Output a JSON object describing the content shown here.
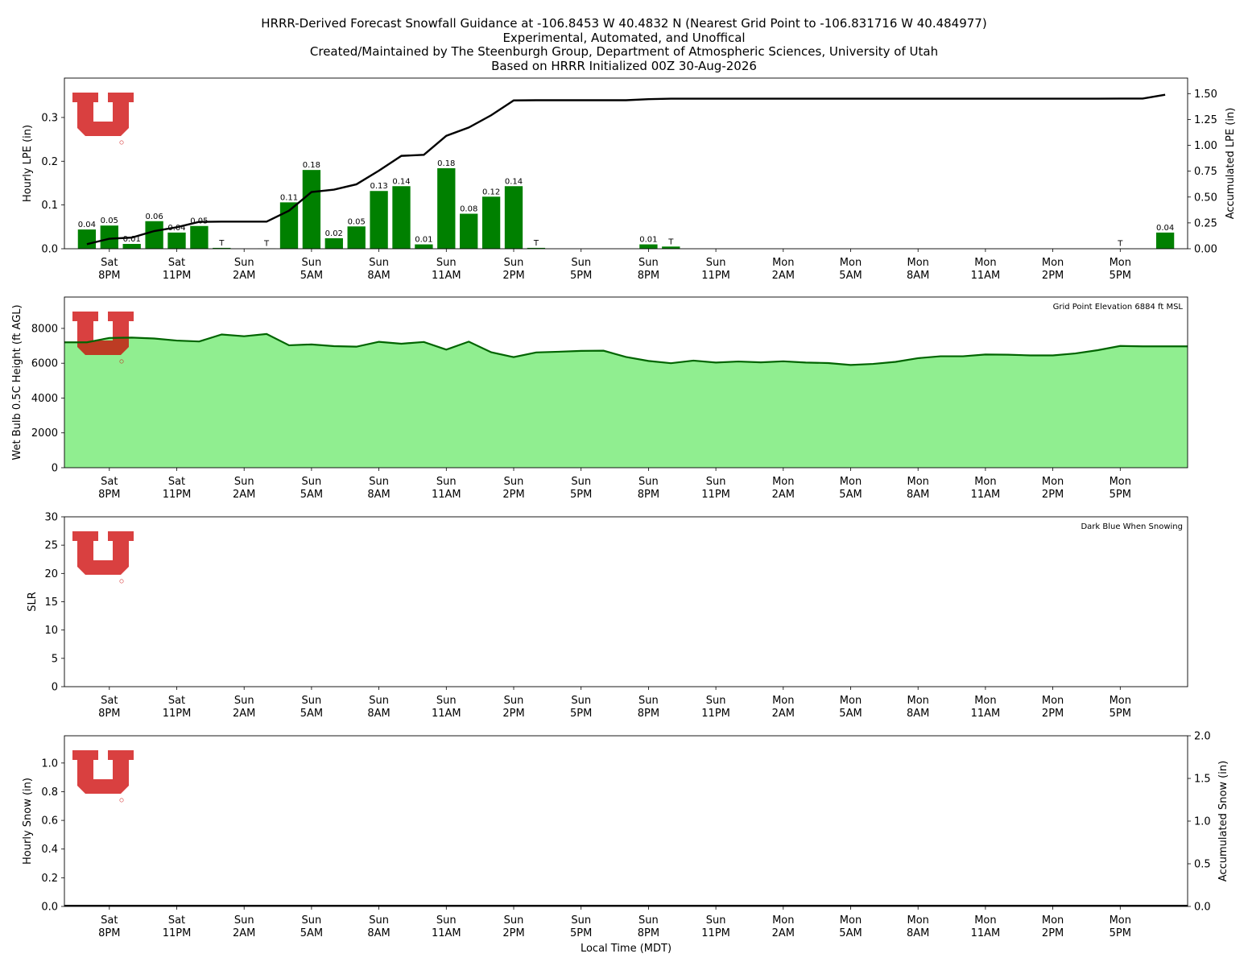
{
  "title_lines": [
    "HRRR-Derived Forecast Snowfall Guidance at -106.8453 W 40.4832 N (Nearest Grid Point to -106.831716 W 40.484977)",
    "Experimental, Automated, and Unoffical",
    "Created/Maintained by The Steenburgh Group, Department of Atmospheric Sciences, University of Utah",
    "Based on HRRR Initialized 00Z 30-Aug-2026"
  ],
  "x_axis": {
    "label": "Local Time (MDT)",
    "tick_labels": [
      [
        "Sat",
        "8PM"
      ],
      [
        "Sat",
        "11PM"
      ],
      [
        "Sun",
        "2AM"
      ],
      [
        "Sun",
        "5AM"
      ],
      [
        "Sun",
        "8AM"
      ],
      [
        "Sun",
        "11AM"
      ],
      [
        "Sun",
        "2PM"
      ],
      [
        "Sun",
        "5PM"
      ],
      [
        "Sun",
        "8PM"
      ],
      [
        "Sun",
        "11PM"
      ],
      [
        "Mon",
        "2AM"
      ],
      [
        "Mon",
        "5AM"
      ],
      [
        "Mon",
        "8AM"
      ],
      [
        "Mon",
        "11AM"
      ],
      [
        "Mon",
        "2PM"
      ],
      [
        "Mon",
        "5PM"
      ]
    ]
  },
  "colors": {
    "bar": "#008000",
    "line": "#000000",
    "fill": "#90ee90",
    "fill_line": "#006400",
    "logo": "#cc0000"
  },
  "chart_data": [
    {
      "type": "bar",
      "ylabel": "Hourly LPE (in)",
      "y2label": "Accumulated LPE (in)",
      "ylim": [
        0,
        0.39
      ],
      "y2lim": [
        0,
        1.65
      ],
      "y_ticks": [
        "0.0",
        "0.1",
        "0.2",
        "0.3"
      ],
      "y2_ticks": [
        "0.00",
        "0.25",
        "0.50",
        "0.75",
        "1.00",
        "1.25",
        "1.50"
      ],
      "hours": [
        -1,
        0,
        1,
        2,
        3,
        4,
        5,
        6,
        7,
        8,
        9,
        10,
        11,
        12,
        13,
        14,
        15,
        16,
        17,
        18,
        19,
        20,
        21,
        22,
        23,
        24,
        25,
        26,
        27,
        28,
        29,
        30,
        31,
        32,
        33,
        34,
        35,
        36,
        37,
        38,
        39,
        40,
        41,
        42,
        43,
        44,
        45,
        46,
        47
      ],
      "hourly_values": [
        0.044,
        0.053,
        0.011,
        0.063,
        0.037,
        0.052,
        0.002,
        0,
        0.0005,
        0.106,
        0.18,
        0.024,
        0.051,
        0.132,
        0.143,
        0.01,
        0.184,
        0.08,
        0.119,
        0.143,
        0.002,
        0,
        0,
        0,
        0,
        0.01,
        0.005,
        0,
        0,
        0,
        0,
        0,
        0,
        0,
        0,
        0,
        0,
        0,
        0,
        0,
        0,
        0,
        0,
        0,
        0,
        0,
        0.0005,
        0,
        0.037
      ],
      "bar_labels": [
        "0.04",
        "0.05",
        "0.01",
        "0.06",
        "0.04",
        "0.05",
        "T",
        "",
        "T",
        "0.11",
        "0.18",
        "0.02",
        "0.05",
        "0.13",
        "0.14",
        "0.01",
        "0.18",
        "0.08",
        "0.12",
        "0.14",
        "T",
        "",
        "",
        "",
        "",
        "0.01",
        "T",
        "",
        "",
        "",
        "",
        "",
        "",
        "",
        "",
        "",
        "",
        "",
        "",
        "",
        "",
        "",
        "",
        "",
        "",
        "",
        "T",
        "",
        "0.04"
      ],
      "accumulated_values": [
        0.044,
        0.097,
        0.108,
        0.171,
        0.208,
        0.26,
        0.262,
        0.262,
        0.262,
        0.368,
        0.548,
        0.572,
        0.623,
        0.755,
        0.898,
        0.908,
        1.092,
        1.172,
        1.291,
        1.434,
        1.436,
        1.436,
        1.436,
        1.436,
        1.436,
        1.446,
        1.451,
        1.451,
        1.451,
        1.451,
        1.451,
        1.451,
        1.451,
        1.451,
        1.451,
        1.451,
        1.451,
        1.451,
        1.451,
        1.451,
        1.451,
        1.451,
        1.451,
        1.451,
        1.451,
        1.451,
        1.452,
        1.452,
        1.489
      ]
    },
    {
      "type": "area",
      "ylabel": "Wet Bulb 0.5C Height (ft AGL)",
      "ylim": [
        0,
        9800
      ],
      "y_ticks": [
        "0",
        "2000",
        "4000",
        "6000",
        "8000"
      ],
      "annotation": "Grid Point Elevation 6884 ft MSL",
      "hours": [
        -1,
        0,
        1,
        2,
        3,
        4,
        5,
        6,
        7,
        8,
        9,
        10,
        11,
        12,
        13,
        14,
        15,
        16,
        17,
        18,
        19,
        20,
        21,
        22,
        23,
        24,
        25,
        26,
        27,
        28,
        29,
        30,
        31,
        32,
        33,
        34,
        35,
        36,
        37,
        38,
        39,
        40,
        41,
        42,
        43,
        44,
        45,
        46,
        47
      ],
      "values": [
        7200,
        7450,
        7470,
        7420,
        7300,
        7250,
        7650,
        7550,
        7680,
        7030,
        7080,
        6980,
        6950,
        7230,
        7120,
        7220,
        6780,
        7240,
        6630,
        6350,
        6620,
        6660,
        6710,
        6720,
        6360,
        6130,
        6000,
        6150,
        6040,
        6100,
        6050,
        6110,
        6040,
        6010,
        5900,
        5960,
        6080,
        6290,
        6400,
        6400,
        6500,
        6490,
        6450,
        6450,
        6560,
        6750,
        6990,
        6970,
        6970
      ]
    },
    {
      "type": "bar",
      "ylabel": "SLR",
      "ylim": [
        0,
        30
      ],
      "y_ticks": [
        "0",
        "5",
        "10",
        "15",
        "20",
        "25",
        "30"
      ],
      "annotation": "Dark Blue When Snowing",
      "values": []
    },
    {
      "type": "bar",
      "ylabel": "Hourly Snow (in)",
      "y2label": "Accumulated Snow (in)",
      "ylim": [
        0,
        1.19
      ],
      "y2lim": [
        0,
        2.0
      ],
      "y_ticks": [
        "0.0",
        "0.2",
        "0.4",
        "0.6",
        "0.8",
        "1.0"
      ],
      "y2_ticks": [
        "0.0",
        "0.5",
        "1.0",
        "1.5",
        "2.0"
      ],
      "hourly_values": [],
      "accumulated_values": []
    }
  ]
}
